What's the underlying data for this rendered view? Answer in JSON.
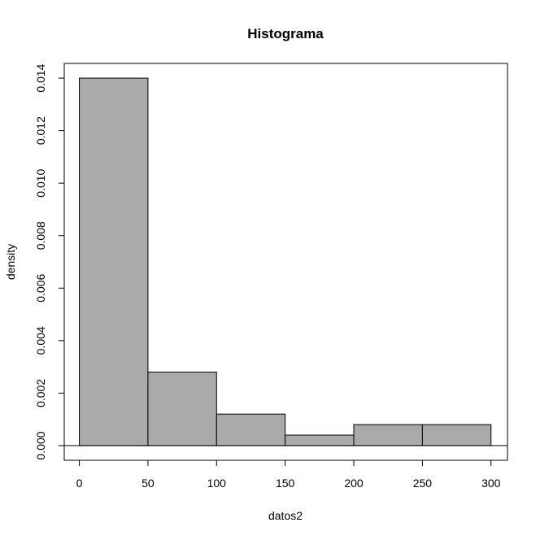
{
  "chart_data": {
    "type": "bar",
    "title": "Histograma",
    "xlabel": "datos2",
    "ylabel": "density",
    "bins": [
      {
        "start": 0,
        "end": 50,
        "density": 0.014
      },
      {
        "start": 50,
        "end": 100,
        "density": 0.0028
      },
      {
        "start": 100,
        "end": 150,
        "density": 0.0012
      },
      {
        "start": 150,
        "end": 200,
        "density": 0.0004
      },
      {
        "start": 200,
        "end": 250,
        "density": 0.0008
      },
      {
        "start": 250,
        "end": 300,
        "density": 0.0008
      }
    ],
    "xlim": [
      -11,
      312
    ],
    "ylim": [
      -0.00056,
      0.01456
    ],
    "x_ticks": [
      0,
      50,
      100,
      150,
      200,
      250,
      300
    ],
    "x_tick_labels": [
      "0",
      "50",
      "100",
      "150",
      "200",
      "250",
      "300"
    ],
    "y_ticks": [
      0,
      0.002,
      0.004,
      0.006,
      0.008,
      0.01,
      0.012,
      0.014
    ],
    "y_tick_labels": [
      "0.000",
      "0.002",
      "0.004",
      "0.006",
      "0.008",
      "0.010",
      "0.012",
      "0.014"
    ],
    "grid": false,
    "bar_color": "#aaaaaa",
    "bar_edge_color": "#000000"
  }
}
